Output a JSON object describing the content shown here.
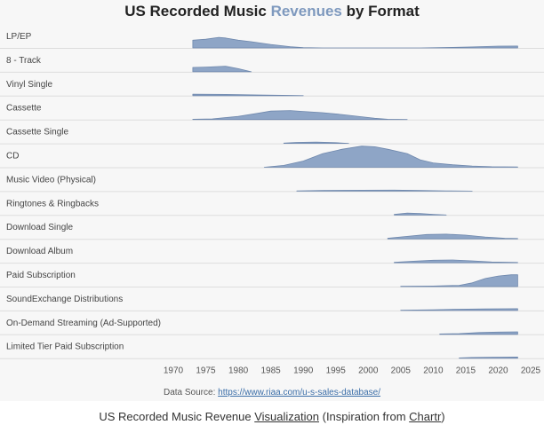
{
  "title": {
    "part1": "US Recorded Music ",
    "highlight": "Revenues",
    "part2": " by Format",
    "highlight_color": "#7e99be"
  },
  "source": {
    "label": "Data Source: ",
    "url_text": "https://www.riaa.com/u-s-sales-database/"
  },
  "caption": {
    "part1": "US Recorded Music Revenue ",
    "link1": "Visualization",
    "part2": " (Inspiration from ",
    "link2": "Chartr",
    "part3": ")"
  },
  "chart_data": {
    "type": "area",
    "subtype": "ridgeline",
    "fill_color": "#8ea5c6",
    "line_color": "#6f88ad",
    "x_ticks": [
      1970,
      1975,
      1980,
      1985,
      1990,
      1995,
      2000,
      2005,
      2010,
      2015,
      2020,
      2025
    ],
    "xlim": [
      1970,
      2025
    ],
    "grid": "row separators",
    "series": [
      {
        "name": "LP/EP",
        "points": [
          [
            1973,
            0.62
          ],
          [
            1975,
            0.7
          ],
          [
            1977,
            0.85
          ],
          [
            1978,
            0.8
          ],
          [
            1980,
            0.62
          ],
          [
            1982,
            0.5
          ],
          [
            1985,
            0.28
          ],
          [
            1988,
            0.1
          ],
          [
            1990,
            0.02
          ],
          [
            1993,
            0.0
          ],
          [
            2008,
            0.0
          ],
          [
            2013,
            0.04
          ],
          [
            2016,
            0.08
          ],
          [
            2020,
            0.14
          ],
          [
            2023,
            0.15
          ]
        ]
      },
      {
        "name": "8 - Track",
        "points": [
          [
            1973,
            0.35
          ],
          [
            1975,
            0.38
          ],
          [
            1978,
            0.45
          ],
          [
            1980,
            0.25
          ],
          [
            1982,
            0.0
          ]
        ]
      },
      {
        "name": "Vinyl Single",
        "points": [
          [
            1973,
            0.12
          ],
          [
            1978,
            0.1
          ],
          [
            1983,
            0.06
          ],
          [
            1988,
            0.02
          ],
          [
            1990,
            0.0
          ]
        ]
      },
      {
        "name": "Cassette",
        "points": [
          [
            1973,
            0.02
          ],
          [
            1976,
            0.05
          ],
          [
            1980,
            0.25
          ],
          [
            1983,
            0.5
          ],
          [
            1985,
            0.68
          ],
          [
            1988,
            0.72
          ],
          [
            1990,
            0.65
          ],
          [
            1993,
            0.55
          ],
          [
            1996,
            0.4
          ],
          [
            1999,
            0.22
          ],
          [
            2001,
            0.1
          ],
          [
            2003,
            0.02
          ],
          [
            2006,
            0.0
          ]
        ]
      },
      {
        "name": "Cassette Single",
        "points": [
          [
            1987,
            0.02
          ],
          [
            1989,
            0.08
          ],
          [
            1992,
            0.1
          ],
          [
            1995,
            0.06
          ],
          [
            1997,
            0.0
          ]
        ]
      },
      {
        "name": "CD",
        "points": [
          [
            1984,
            0.0
          ],
          [
            1987,
            0.15
          ],
          [
            1990,
            0.5
          ],
          [
            1993,
            1.1
          ],
          [
            1996,
            1.45
          ],
          [
            1999,
            1.7
          ],
          [
            2001,
            1.65
          ],
          [
            2003,
            1.45
          ],
          [
            2006,
            1.1
          ],
          [
            2008,
            0.6
          ],
          [
            2010,
            0.35
          ],
          [
            2013,
            0.2
          ],
          [
            2016,
            0.1
          ],
          [
            2019,
            0.04
          ],
          [
            2023,
            0.02
          ]
        ]
      },
      {
        "name": "Music Video (Physical)",
        "points": [
          [
            1989,
            0.02
          ],
          [
            1993,
            0.06
          ],
          [
            1999,
            0.07
          ],
          [
            2004,
            0.08
          ],
          [
            2008,
            0.05
          ],
          [
            2012,
            0.02
          ],
          [
            2016,
            0.0
          ]
        ]
      },
      {
        "name": "Ringtones & Ringbacks",
        "points": [
          [
            2004,
            0.05
          ],
          [
            2006,
            0.15
          ],
          [
            2008,
            0.12
          ],
          [
            2010,
            0.05
          ],
          [
            2012,
            0.0
          ]
        ]
      },
      {
        "name": "Download Single",
        "points": [
          [
            2003,
            0.05
          ],
          [
            2006,
            0.2
          ],
          [
            2009,
            0.35
          ],
          [
            2012,
            0.38
          ],
          [
            2015,
            0.3
          ],
          [
            2018,
            0.15
          ],
          [
            2021,
            0.05
          ],
          [
            2023,
            0.03
          ]
        ]
      },
      {
        "name": "Download Album",
        "points": [
          [
            2004,
            0.03
          ],
          [
            2007,
            0.12
          ],
          [
            2010,
            0.2
          ],
          [
            2013,
            0.22
          ],
          [
            2016,
            0.15
          ],
          [
            2019,
            0.06
          ],
          [
            2023,
            0.02
          ]
        ]
      },
      {
        "name": "Paid Subscription",
        "points": [
          [
            2005,
            0.02
          ],
          [
            2010,
            0.04
          ],
          [
            2014,
            0.1
          ],
          [
            2016,
            0.3
          ],
          [
            2018,
            0.65
          ],
          [
            2020,
            0.85
          ],
          [
            2022,
            0.95
          ],
          [
            2023,
            0.95
          ]
        ]
      },
      {
        "name": "SoundExchange Distributions",
        "points": [
          [
            2005,
            0.02
          ],
          [
            2010,
            0.06
          ],
          [
            2014,
            0.1
          ],
          [
            2018,
            0.12
          ],
          [
            2023,
            0.14
          ]
        ]
      },
      {
        "name": "On-Demand Streaming (Ad-Supported)",
        "points": [
          [
            2011,
            0.03
          ],
          [
            2014,
            0.06
          ],
          [
            2017,
            0.14
          ],
          [
            2020,
            0.18
          ],
          [
            2023,
            0.2
          ]
        ]
      },
      {
        "name": "Limited Tier Paid Subscription",
        "points": [
          [
            2014,
            0.02
          ],
          [
            2016,
            0.06
          ],
          [
            2019,
            0.08
          ],
          [
            2023,
            0.09
          ]
        ]
      }
    ]
  }
}
